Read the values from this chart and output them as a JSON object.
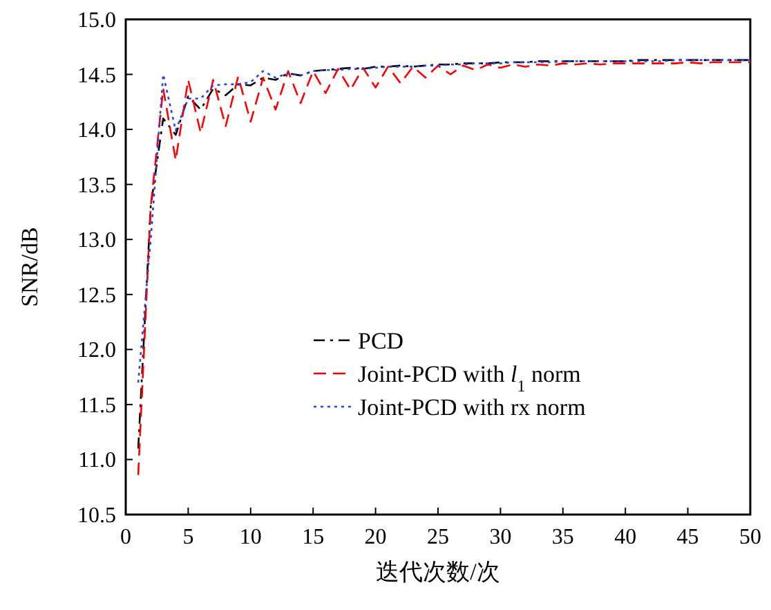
{
  "chart_data": {
    "type": "line",
    "xlabel": "迭代次数/次",
    "ylabel": "SNR/dB",
    "x": [
      1,
      2,
      3,
      4,
      5,
      6,
      7,
      8,
      9,
      10,
      11,
      12,
      13,
      14,
      15,
      16,
      17,
      18,
      19,
      20,
      21,
      22,
      23,
      24,
      25,
      26,
      27,
      28,
      29,
      30,
      31,
      32,
      33,
      34,
      35,
      36,
      37,
      38,
      39,
      40,
      41,
      42,
      43,
      44,
      45,
      46,
      47,
      48,
      49,
      50
    ],
    "series": [
      {
        "name": "PCD",
        "color": "#000000",
        "line_style": "dashdot",
        "values": [
          11.1,
          13.3,
          14.1,
          13.95,
          14.3,
          14.18,
          14.37,
          14.31,
          14.41,
          14.4,
          14.47,
          14.45,
          14.51,
          14.49,
          14.53,
          14.54,
          14.55,
          14.56,
          14.55,
          14.57,
          14.57,
          14.58,
          14.57,
          14.58,
          14.59,
          14.59,
          14.6,
          14.6,
          14.6,
          14.61,
          14.61,
          14.61,
          14.62,
          14.62,
          14.62,
          14.62,
          14.62,
          14.62,
          14.62,
          14.62,
          14.63,
          14.63,
          14.63,
          14.63,
          14.63,
          14.63,
          14.63,
          14.63,
          14.63,
          14.63
        ]
      },
      {
        "name": "Joint-PCD with l$_{1}$ norm",
        "color": "#ff0000",
        "line_style": "dashed",
        "values": [
          10.86,
          13.3,
          14.37,
          13.72,
          14.45,
          13.97,
          14.45,
          14.03,
          14.48,
          14.07,
          14.47,
          14.18,
          14.53,
          14.24,
          14.53,
          14.33,
          14.55,
          14.36,
          14.56,
          14.38,
          14.57,
          14.42,
          14.57,
          14.47,
          14.58,
          14.5,
          14.58,
          14.54,
          14.59,
          14.56,
          14.59,
          14.57,
          14.59,
          14.58,
          14.6,
          14.59,
          14.6,
          14.59,
          14.6,
          14.6,
          14.6,
          14.6,
          14.6,
          14.6,
          14.61,
          14.6,
          14.61,
          14.61,
          14.61,
          14.61
        ]
      },
      {
        "name": "Joint-PCD with rx norm",
        "color": "#2244ee",
        "line_style": "dotted",
        "values": [
          11.7,
          13.0,
          14.5,
          13.99,
          14.28,
          14.28,
          14.4,
          14.41,
          14.41,
          14.43,
          14.53,
          14.47,
          14.51,
          14.49,
          14.53,
          14.54,
          14.54,
          14.55,
          14.55,
          14.56,
          14.57,
          14.57,
          14.57,
          14.58,
          14.58,
          14.59,
          14.59,
          14.6,
          14.6,
          14.6,
          14.61,
          14.61,
          14.61,
          14.61,
          14.62,
          14.62,
          14.62,
          14.62,
          14.62,
          14.62,
          14.62,
          14.62,
          14.62,
          14.63,
          14.63,
          14.63,
          14.63,
          14.63,
          14.63,
          14.63
        ]
      }
    ],
    "xlim": [
      0,
      50
    ],
    "xticks": [
      0,
      5,
      10,
      15,
      20,
      25,
      30,
      35,
      40,
      45,
      50
    ],
    "ylim": [
      10.5,
      15
    ],
    "yticks": [
      {
        "value": 10.5,
        "label": "10.5"
      },
      {
        "value": 11,
        "label": "11.0"
      },
      {
        "value": 11.5,
        "label": "11.5"
      },
      {
        "value": 12,
        "label": "12.0"
      },
      {
        "value": 12.5,
        "label": "12.5"
      },
      {
        "value": 13,
        "label": "13.0"
      },
      {
        "value": 13.5,
        "label": "13.5"
      },
      {
        "value": 14,
        "label": "14.0"
      },
      {
        "value": 14.5,
        "label": "14.5"
      },
      {
        "value": 15,
        "label": "15.0"
      }
    ],
    "grid": false,
    "legend": "right"
  }
}
